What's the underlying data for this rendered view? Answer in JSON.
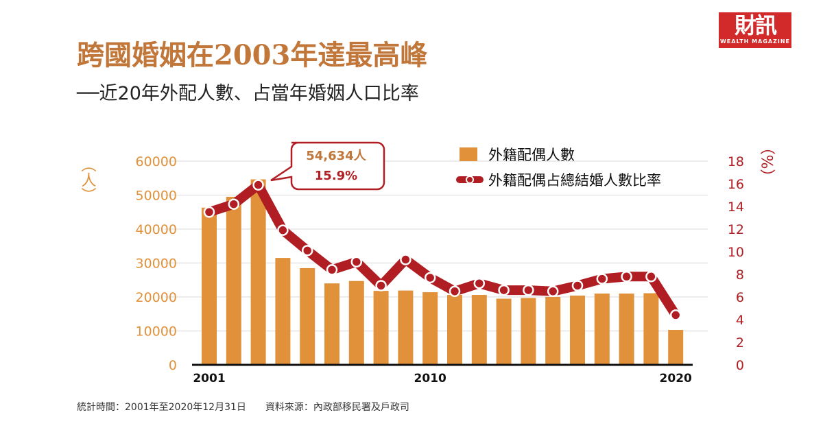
{
  "title": "跨國婚姻在2003年達最高峰",
  "subtitle": "──近20年外配人數、占當年婚姻人口比率",
  "logo": {
    "main": "財訊",
    "sub": "WEALTH MAGAZINE"
  },
  "footer": "統計時間：2001年至2020年12月31日　　資料來源：內政部移民署及戶政司",
  "chart_data": {
    "type": "bar+line",
    "x": [
      2001,
      2002,
      2003,
      2004,
      2005,
      2006,
      2007,
      2008,
      2009,
      2010,
      2011,
      2012,
      2013,
      2014,
      2015,
      2016,
      2017,
      2018,
      2019,
      2020
    ],
    "x_tick_labels": [
      "2001",
      "2010",
      "2020"
    ],
    "left_axis": {
      "label": "（人）",
      "ylim": [
        0,
        60000
      ],
      "ticks": [
        "0",
        "10000",
        "20000",
        "30000",
        "40000",
        "50000",
        "60000"
      ],
      "color": "#e0913a"
    },
    "right_axis": {
      "label": "（%）",
      "ylim": [
        0,
        18
      ],
      "ticks": [
        "0",
        "2",
        "4",
        "6",
        "8",
        "10",
        "12",
        "14",
        "16",
        "18"
      ],
      "color": "#b01e23"
    },
    "series": [
      {
        "name": "外籍配偶人數",
        "type": "bar",
        "axis": "left",
        "color": "#e0913a",
        "values": [
          46300,
          49500,
          54634,
          31500,
          28500,
          24000,
          24700,
          21800,
          21900,
          21400,
          20600,
          20600,
          19500,
          19700,
          20000,
          20400,
          21000,
          21000,
          21100,
          10300
        ]
      },
      {
        "name": "外籍配偶占總結婚人數比率",
        "type": "line",
        "axis": "right",
        "color": "#b01e23",
        "values": [
          13.5,
          14.2,
          15.9,
          11.9,
          10.1,
          8.4,
          9.1,
          7.0,
          9.3,
          7.7,
          6.5,
          7.2,
          6.6,
          6.6,
          6.5,
          7.0,
          7.6,
          7.8,
          7.8,
          4.4
        ]
      }
    ],
    "annotation": {
      "year": 2003,
      "line1": "54,634人",
      "line2": "15.9%"
    },
    "grid": true,
    "legend": "top-right"
  }
}
